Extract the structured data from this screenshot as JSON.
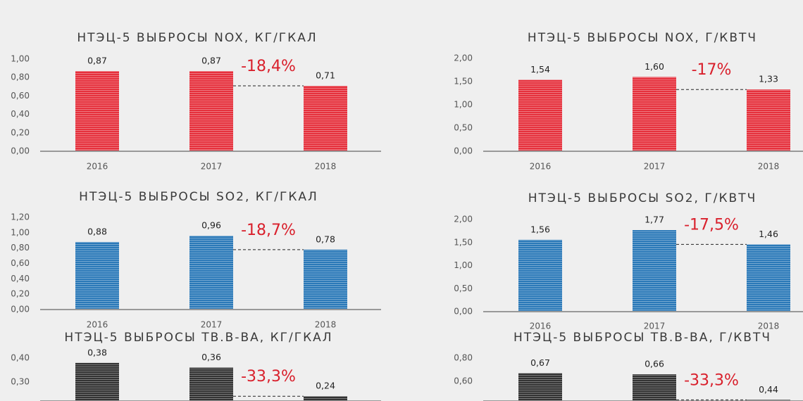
{
  "chart_data": [
    {
      "type": "bar",
      "title": "НТЭЦ-5 ВЫБРОСЫ NOX, КГ/ГКАЛ",
      "categories": [
        "2016",
        "2017",
        "2018"
      ],
      "values": [
        0.87,
        0.87,
        0.71
      ],
      "value_labels": [
        "0,87",
        "0,87",
        "0,71"
      ],
      "color": "#e5303c",
      "ylim": [
        0,
        1
      ],
      "yticks": [
        {
          "value": 0,
          "label": "0,00"
        },
        {
          "value": 0.2,
          "label": "0,20"
        },
        {
          "value": 0.4,
          "label": "0,40"
        },
        {
          "value": 0.6,
          "label": "0,60"
        },
        {
          "value": 0.8,
          "label": "0,80"
        },
        {
          "value": 1,
          "label": "1,00"
        }
      ],
      "annotation": "-18,4%"
    },
    {
      "type": "bar",
      "title": "НТЭЦ-5 ВЫБРОСЫ NOX, Г/КВТЧ",
      "categories": [
        "2016",
        "2017",
        "2018"
      ],
      "values": [
        1.54,
        1.6,
        1.33
      ],
      "value_labels": [
        "1,54",
        "1,60",
        "1,33"
      ],
      "color": "#e5303c",
      "ylim": [
        0,
        2
      ],
      "yticks": [
        {
          "value": 0,
          "label": "0,00"
        },
        {
          "value": 0.5,
          "label": "0,50"
        },
        {
          "value": 1,
          "label": "1,00"
        },
        {
          "value": 1.5,
          "label": "1,50"
        },
        {
          "value": 2,
          "label": "2,00"
        }
      ],
      "annotation": "-17%"
    },
    {
      "type": "bar",
      "title": "НТЭЦ-5 ВЫБРОСЫ SO2, КГ/ГКАЛ",
      "categories": [
        "2016",
        "2017",
        "2018"
      ],
      "values": [
        0.88,
        0.96,
        0.78
      ],
      "value_labels": [
        "0,88",
        "0,96",
        "0,78"
      ],
      "color": "#2b79b8",
      "ylim": [
        0,
        1.2
      ],
      "yticks": [
        {
          "value": 0,
          "label": "0,00"
        },
        {
          "value": 0.2,
          "label": "0,20"
        },
        {
          "value": 0.4,
          "label": "0,40"
        },
        {
          "value": 0.6,
          "label": "0,60"
        },
        {
          "value": 0.8,
          "label": "0,80"
        },
        {
          "value": 1,
          "label": "1,00"
        },
        {
          "value": 1.2,
          "label": "1,20"
        }
      ],
      "annotation": "-18,7%"
    },
    {
      "type": "bar",
      "title": "НТЭЦ-5 ВЫБРОСЫ SO2, Г/КВТЧ",
      "categories": [
        "2016",
        "2017",
        "2018"
      ],
      "values": [
        1.56,
        1.77,
        1.46
      ],
      "value_labels": [
        "1,56",
        "1,77",
        "1,46"
      ],
      "color": "#2b79b8",
      "ylim": [
        0,
        2
      ],
      "yticks": [
        {
          "value": 0,
          "label": "0,00"
        },
        {
          "value": 0.5,
          "label": "0,50"
        },
        {
          "value": 1,
          "label": "1,00"
        },
        {
          "value": 1.5,
          "label": "1,50"
        },
        {
          "value": 2,
          "label": "2,00"
        }
      ],
      "annotation": "-17,5%"
    },
    {
      "type": "bar",
      "title": "НТЭЦ-5 ВЫБРОСЫ ТВ.В-ВА, КГ/ГКАЛ",
      "values": [
        0.38,
        0.36,
        0.24
      ],
      "value_labels": [
        "0,38",
        "0,36",
        "0,24"
      ],
      "color": "#333333",
      "ylim": [
        0.22,
        0.4
      ],
      "yticks": [
        {
          "value": 0.3,
          "label": "0,30"
        },
        {
          "value": 0.4,
          "label": "0,40"
        }
      ],
      "annotation": "-33,3%"
    },
    {
      "type": "bar",
      "title": "НТЭЦ-5 ВЫБРОСЫ ТВ.В-ВА, Г/КВТЧ",
      "values": [
        0.67,
        0.66,
        0.44
      ],
      "value_labels": [
        "0,67",
        "0,66",
        "0,44"
      ],
      "color": "#333333",
      "ylim": [
        0.43,
        0.8
      ],
      "yticks": [
        {
          "value": 0.6,
          "label": "0,60"
        },
        {
          "value": 0.8,
          "label": "0,80"
        }
      ],
      "annotation": "-33,3%"
    }
  ]
}
